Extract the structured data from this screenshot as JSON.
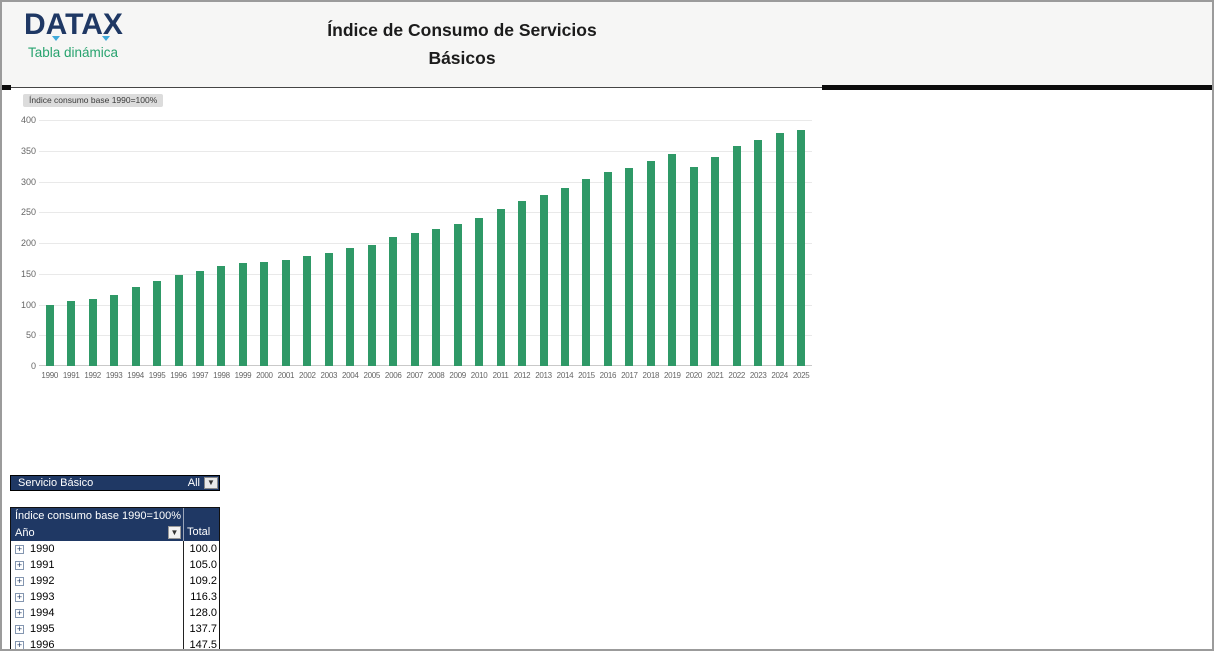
{
  "header": {
    "logo": {
      "brand": "DATAX",
      "subtitle": "Tabla dinámica"
    },
    "title_line1": "Índice de Consumo de Servicios",
    "title_line2": "Básicos"
  },
  "chart": {
    "field_button": "Índice consumo base 1990=100%"
  },
  "chart_data": {
    "type": "bar",
    "title": "Índice consumo base 1990=100%",
    "categories": [
      "1990",
      "1991",
      "1992",
      "1993",
      "1994",
      "1995",
      "1996",
      "1997",
      "1998",
      "1999",
      "2000",
      "2001",
      "2002",
      "2003",
      "2004",
      "2005",
      "2006",
      "2007",
      "2008",
      "2009",
      "2010",
      "2011",
      "2012",
      "2013",
      "2014",
      "2015",
      "2016",
      "2017",
      "2018",
      "2019",
      "2020",
      "2021",
      "2022",
      "2023",
      "2024",
      "2025"
    ],
    "values": [
      100.0,
      105.0,
      109.2,
      116.3,
      128.0,
      137.7,
      147.5,
      155,
      162,
      167,
      170,
      172,
      179,
      184,
      192,
      197,
      210,
      216,
      223,
      231,
      241,
      256,
      268,
      278,
      290,
      304,
      316,
      322,
      334,
      344,
      324,
      340,
      358,
      368,
      379,
      384
    ],
    "xlabel": "",
    "ylabel": "",
    "ylim": [
      0,
      400
    ],
    "yticks": [
      0,
      50,
      100,
      150,
      200,
      250,
      300,
      350,
      400
    ],
    "grid": true,
    "legend": false,
    "bar_color": "#2f9967"
  },
  "filter": {
    "label": "Servicio Básico",
    "value": "All"
  },
  "pivot": {
    "header": "Índice consumo base 1990=100%",
    "row_field": "Año",
    "value_field": "Total",
    "rows": [
      {
        "year": "1990",
        "total": "100.0"
      },
      {
        "year": "1991",
        "total": "105.0"
      },
      {
        "year": "1992",
        "total": "109.2"
      },
      {
        "year": "1993",
        "total": "116.3"
      },
      {
        "year": "1994",
        "total": "128.0"
      },
      {
        "year": "1995",
        "total": "137.7"
      },
      {
        "year": "1996",
        "total": "147.5"
      }
    ]
  },
  "colors": {
    "navy": "#1f3864",
    "bar_green": "#2f9967",
    "logo_green": "#27a36e",
    "logo_accent": "#3fa9d9",
    "field_button_bg": "#dcdcdc"
  }
}
